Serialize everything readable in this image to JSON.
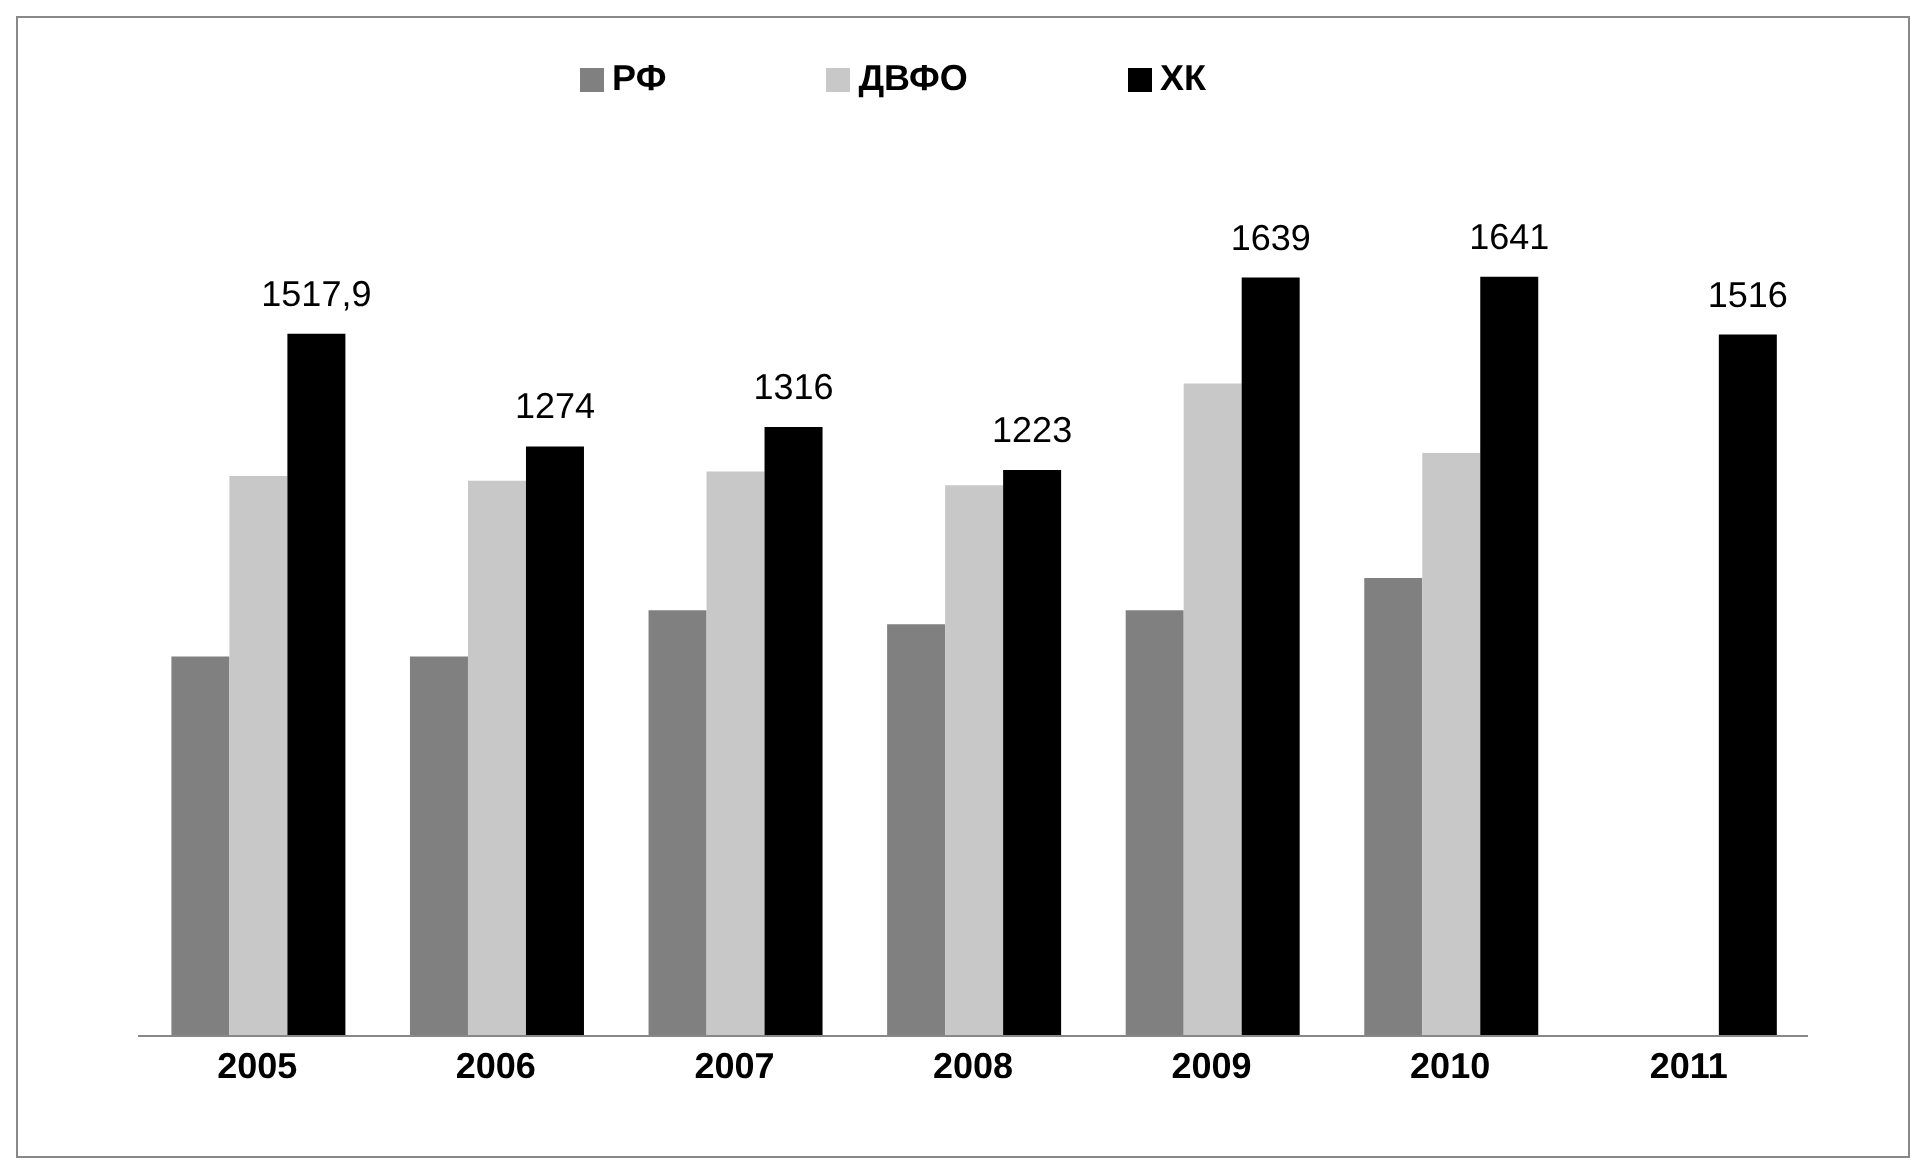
{
  "chart_data": {
    "type": "bar",
    "categories": [
      "2005",
      "2006",
      "2007",
      "2008",
      "2009",
      "2010",
      "2011"
    ],
    "series": [
      {
        "name": "РФ",
        "color": "#808080",
        "values": [
          820,
          820,
          920,
          890,
          920,
          990,
          null
        ]
      },
      {
        "name": "ДВФО",
        "color": "#c8c8c8",
        "values": [
          1210,
          1200,
          1220,
          1190,
          1410,
          1260,
          null
        ]
      },
      {
        "name": "ХК",
        "color": "#000000",
        "values": [
          1517.9,
          1274,
          1316,
          1223,
          1639,
          1641,
          1516
        ],
        "value_labels": [
          "1517,9",
          "1274",
          "1316",
          "1223",
          "1639",
          "1641",
          "1516"
        ]
      }
    ],
    "legend": "top",
    "grid": false
  }
}
